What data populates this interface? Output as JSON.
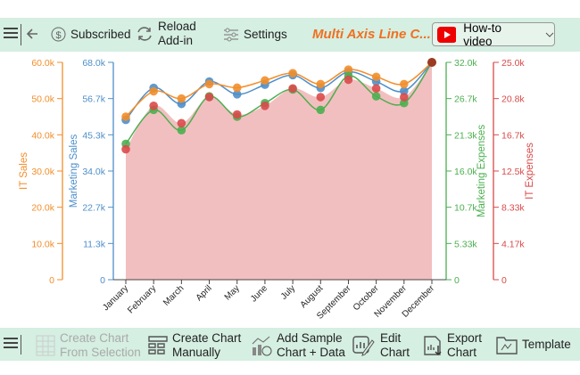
{
  "toolbar": {
    "subscribed": "Subscribed",
    "reload1": "Reload",
    "reload2": "Add-in",
    "settings": "Settings",
    "title": "Multi Axis Line C...",
    "howto": "How-to video"
  },
  "bottom": {
    "create_sel1": "Create Chart",
    "create_sel2": "From Selection",
    "create_man1": "Create Chart",
    "create_man2": "Manually",
    "sample1": "Add Sample",
    "sample2": "Chart + Data",
    "edit1": "Edit",
    "edit2": "Chart",
    "export1": "Export",
    "export2": "Chart",
    "template": "Template"
  },
  "chart_data": {
    "type": "line",
    "categories": [
      "January",
      "February",
      "March",
      "April",
      "May",
      "June",
      "July",
      "August",
      "September",
      "October",
      "November",
      "December"
    ],
    "series": [
      {
        "name": "IT Sales",
        "color": "#f28e2b",
        "axis_label": "IT Sales",
        "ylim": [
          0,
          60000
        ],
        "ticks": [
          "0",
          "10.0k",
          "20.0k",
          "30.0k",
          "40.0k",
          "50.0k",
          "60.0k"
        ],
        "values": [
          45000,
          52000,
          50000,
          54000,
          53000,
          55000,
          57000,
          54000,
          58000,
          56000,
          54000,
          60000
        ]
      },
      {
        "name": "Marketing Sales",
        "color": "#4e8fc9",
        "axis_label": "Marketing Sales",
        "ylim": [
          0,
          68000
        ],
        "ticks": [
          "0",
          "11.3k",
          "22.7k",
          "34.0k",
          "45.3k",
          "56.7k",
          "68.0k"
        ],
        "values": [
          50000,
          60000,
          55000,
          62000,
          58000,
          61000,
          64000,
          60000,
          65000,
          62000,
          59000,
          68000
        ]
      },
      {
        "name": "Marketing Expenses",
        "color": "#4caf50",
        "axis_label": "Marketing Expenses",
        "ylim": [
          0,
          32000
        ],
        "ticks": [
          "0",
          "5.33k",
          "10.7k",
          "16.0k",
          "21.3k",
          "26.7k",
          "32.0k"
        ],
        "values": [
          20000,
          25000,
          22000,
          27000,
          24000,
          26000,
          28000,
          25000,
          30000,
          27000,
          26000,
          32000
        ]
      },
      {
        "name": "IT Expenses",
        "color": "#d94a4a",
        "axis_label": "IT Expenses",
        "ylim": [
          0,
          25000
        ],
        "ticks": [
          "0",
          "4.17k",
          "8.33k",
          "12.5k",
          "16.7k",
          "20.8k",
          "25.0k"
        ],
        "values": [
          15000,
          20000,
          18000,
          21000,
          19000,
          20000,
          22000,
          21000,
          23000,
          22000,
          21000,
          25000
        ]
      }
    ]
  }
}
